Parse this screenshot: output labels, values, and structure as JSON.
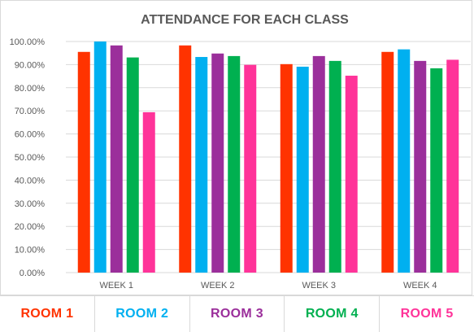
{
  "chart_data": {
    "type": "bar",
    "title": "ATTENDANCE FOR EACH CLASS",
    "xlabel": "",
    "ylabel": "",
    "ylim": [
      0,
      100
    ],
    "y_tick_step": 10,
    "y_tick_format": "percent_2dp",
    "grid": true,
    "legend_placement": "bottom",
    "categories": [
      "WEEK 1",
      "WEEK 2",
      "WEEK 3",
      "WEEK 4"
    ],
    "series": [
      {
        "name": "ROOM 1",
        "color": "#ff3300",
        "values": [
          95.5,
          98.3,
          90.2,
          95.5
        ]
      },
      {
        "name": "ROOM 2",
        "color": "#00b0f0",
        "values": [
          100.0,
          93.3,
          89.1,
          96.6
        ]
      },
      {
        "name": "ROOM 3",
        "color": "#9b2f9b",
        "values": [
          98.3,
          94.8,
          93.7,
          91.6
        ]
      },
      {
        "name": "ROOM 4",
        "color": "#00b050",
        "values": [
          93.1,
          93.7,
          91.6,
          88.4
        ]
      },
      {
        "name": "ROOM 5",
        "color": "#ff3399",
        "values": [
          69.4,
          89.9,
          85.2,
          92.1
        ]
      }
    ]
  },
  "colors": {
    "title": "#595959",
    "axis_text": "#595959",
    "gridline": "#d9d9d9"
  }
}
